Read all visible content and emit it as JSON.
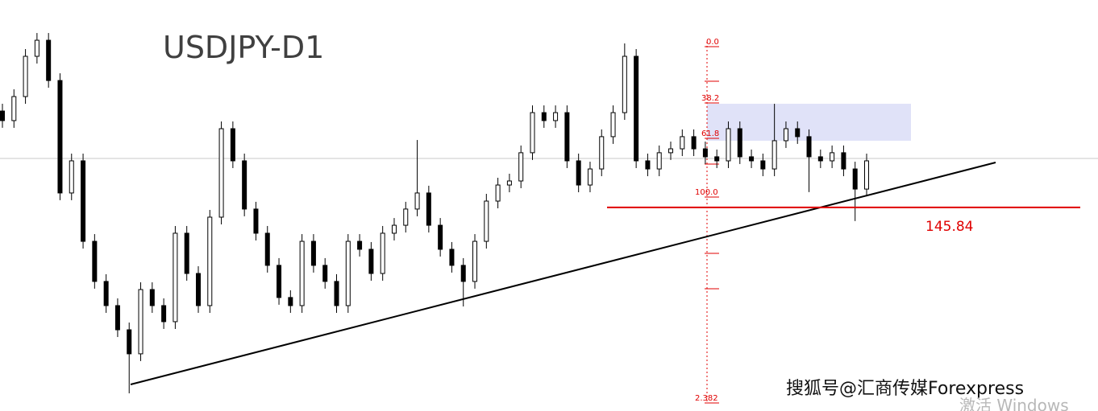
{
  "chart_data": {
    "type": "candlestick",
    "title": "USDJPY-D1",
    "open": [
      152.5,
      151.84,
      153.5,
      156.28,
      157.39,
      154.61,
      146.84,
      149.06,
      143.5,
      140.73,
      139.06,
      137.39,
      135.73,
      140.17,
      139.06,
      137.95,
      144.06,
      141.28,
      139.06,
      145.17,
      151.28,
      149.06,
      145.73,
      144.06,
      141.84,
      139.62,
      139.06,
      143.5,
      141.84,
      140.73,
      139.06,
      143.5,
      142.95,
      141.28,
      144.06,
      144.61,
      145.73,
      146.84,
      144.61,
      142.95,
      141.84,
      140.73,
      143.5,
      146.28,
      147.39,
      147.67,
      149.62,
      152.39,
      151.84,
      152.39,
      149.06,
      147.39,
      148.5,
      150.73,
      152.39,
      156.28,
      149.06,
      148.5,
      149.62,
      149.89,
      150.73,
      149.89,
      149.34,
      149.06,
      151.28,
      149.34,
      149.06,
      148.5,
      150.45,
      151.28,
      150.73,
      149.34,
      149.06,
      149.62,
      148.5,
      147.11
    ],
    "high": [
      153.0,
      154.0,
      156.78,
      157.89,
      157.89,
      155.11,
      149.56,
      149.56,
      144.0,
      141.23,
      139.56,
      137.89,
      140.67,
      140.67,
      139.56,
      144.56,
      144.56,
      141.78,
      145.67,
      151.78,
      151.78,
      149.56,
      146.23,
      144.56,
      142.34,
      140.12,
      144.0,
      144.0,
      142.34,
      141.23,
      144.0,
      144.0,
      143.45,
      144.56,
      145.11,
      146.23,
      150.5,
      147.34,
      145.11,
      143.45,
      142.34,
      144.0,
      146.78,
      147.89,
      148.17,
      150.12,
      152.89,
      152.89,
      152.89,
      152.89,
      149.56,
      149.0,
      151.23,
      152.89,
      157.17,
      156.78,
      149.56,
      150.12,
      150.39,
      151.23,
      151.23,
      150.39,
      149.84,
      151.78,
      151.78,
      149.84,
      149.56,
      153.0,
      151.78,
      151.78,
      151.23,
      149.84,
      150.12,
      150.12,
      149.0,
      149.56
    ],
    "low": [
      151.34,
      151.34,
      153.0,
      155.78,
      154.11,
      146.34,
      146.34,
      143.0,
      140.23,
      138.56,
      136.89,
      133.0,
      135.23,
      138.56,
      137.45,
      137.45,
      140.78,
      138.56,
      138.56,
      144.67,
      148.56,
      145.23,
      143.56,
      141.34,
      139.12,
      138.56,
      138.56,
      141.34,
      140.23,
      138.56,
      138.56,
      142.45,
      140.78,
      140.78,
      143.56,
      144.11,
      145.23,
      144.11,
      142.45,
      141.34,
      139.0,
      140.23,
      143.0,
      145.78,
      146.89,
      147.17,
      149.12,
      151.34,
      151.34,
      148.56,
      146.89,
      146.89,
      148.0,
      150.23,
      151.89,
      148.56,
      148.0,
      148.0,
      149.12,
      149.39,
      149.39,
      148.84,
      148.56,
      148.56,
      148.84,
      148.56,
      148.0,
      148.0,
      149.95,
      150.23,
      146.9,
      148.56,
      148.56,
      148.0,
      144.9,
      146.61
    ],
    "close": [
      151.84,
      153.5,
      156.28,
      157.39,
      154.61,
      146.84,
      149.06,
      143.5,
      140.73,
      139.06,
      137.39,
      135.73,
      140.17,
      139.06,
      137.95,
      144.06,
      141.28,
      139.06,
      145.17,
      151.28,
      149.06,
      145.73,
      144.06,
      141.84,
      139.62,
      139.06,
      143.5,
      141.84,
      140.73,
      139.06,
      143.5,
      142.95,
      141.28,
      144.06,
      144.61,
      145.73,
      146.84,
      144.61,
      142.95,
      141.84,
      140.73,
      143.5,
      146.28,
      147.39,
      147.67,
      149.62,
      152.39,
      151.84,
      152.39,
      149.06,
      147.39,
      148.5,
      150.73,
      152.39,
      156.28,
      149.06,
      148.5,
      149.62,
      149.89,
      150.73,
      149.89,
      149.34,
      149.06,
      151.28,
      149.34,
      149.06,
      148.5,
      150.45,
      151.28,
      150.73,
      149.34,
      149.06,
      149.62,
      148.5,
      147.11,
      149.06
    ],
    "ylim": [
      131.78,
      160.17
    ],
    "up_color": "#ffffff",
    "down_color": "#000000",
    "level": 145.84,
    "level_color": "#e00000",
    "fib_labels": [
      "0.0",
      "38.2",
      "61.8",
      "100.0",
      "2.382"
    ]
  },
  "watermark": "搜狐号@汇商传媒Forexpress",
  "os_notice": "激活 Windows"
}
